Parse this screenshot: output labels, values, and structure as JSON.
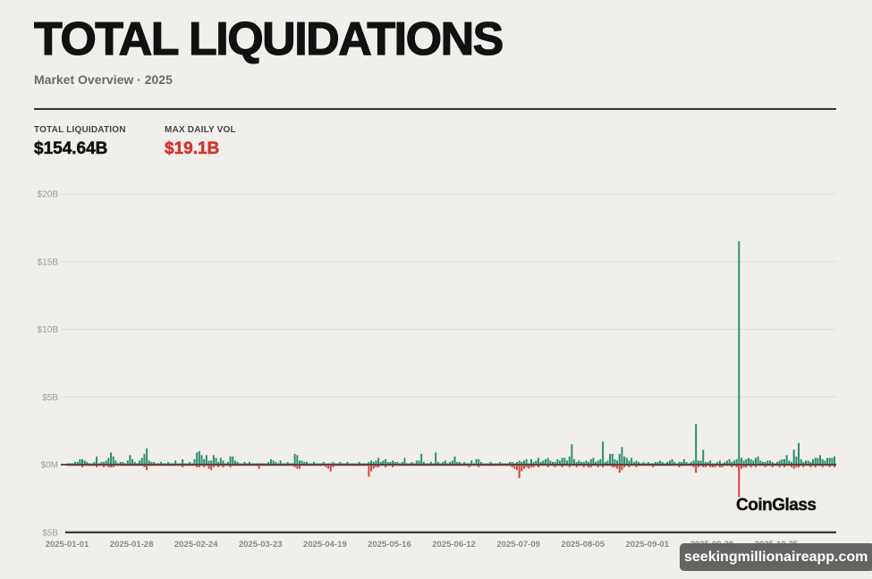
{
  "header": {
    "title": "TOTAL LIQUIDATIONS",
    "subtitle": "Market Overview · 2025"
  },
  "stats": [
    {
      "label": "TOTAL LIQUIDATION",
      "value": "$154.64B",
      "color": "#111111"
    },
    {
      "label": "MAX DAILY VOL",
      "value": "$19.1B",
      "color": "#d8322b"
    }
  ],
  "logo": "CoinGlass",
  "watermark": "seekingmillionaireapp.com",
  "chart_data": {
    "type": "bar",
    "title": "",
    "xlabel": "",
    "ylabel": "",
    "unit": "USD billions, daily",
    "ylim": [
      -5,
      20
    ],
    "grid": true,
    "y_ticks": [
      {
        "value": 20,
        "label": "$20B"
      },
      {
        "value": 15,
        "label": "$15B"
      },
      {
        "value": 10,
        "label": "$10B"
      },
      {
        "value": 5,
        "label": "$5B"
      },
      {
        "value": 0,
        "label": "$0M"
      },
      {
        "value": -5,
        "label": "$5B"
      }
    ],
    "x_ticks": [
      "2025-01-01",
      "2025-01-28",
      "2025-02-24",
      "2025-03-23",
      "2025-04-19",
      "2025-05-16",
      "2025-06-12",
      "2025-07-09",
      "2025-08-05",
      "2025-09-01",
      "2025-09-28",
      "2025-10-25"
    ],
    "colors": {
      "positive": "#2a8f6e",
      "negative": "#d9413f"
    },
    "series": [
      {
        "values": [
          0.1,
          0.1,
          0.1,
          0.2,
          0.2,
          0.4,
          0.4,
          0.3,
          0.2,
          0.1,
          0.1,
          0.2,
          0.6,
          0.1,
          0.2,
          0.2,
          0.3,
          0.5,
          0.9,
          0.6,
          0.3,
          0.1,
          0.2,
          0.2,
          0.1,
          0.3,
          0.7,
          0.4,
          0.2,
          0.1,
          0.3,
          0.5,
          0.8,
          1.2,
          0.3,
          0.2,
          0.2,
          0.1,
          0.1,
          0.2,
          0.1,
          0.1,
          0.2,
          0.1,
          0.1,
          0.3,
          0.1,
          0.1,
          0.4,
          0.1,
          0.1,
          0.2,
          0.1,
          0.4,
          0.9,
          1.0,
          0.7,
          0.4,
          0.7,
          0.3,
          0.3,
          0.7,
          0.5,
          0.2,
          0.5,
          0.3,
          0.1,
          0.2,
          0.6,
          0.6,
          0.3,
          0.2,
          0.1,
          0.1,
          0.2,
          0.1,
          0.2,
          0.1,
          0.1,
          0.1,
          0.1,
          0.1,
          0.1,
          0.1,
          0.2,
          0.4,
          0.3,
          0.2,
          0.1,
          0.3,
          0.1,
          0.1,
          0.2,
          0.1,
          0.1,
          0.8,
          0.7,
          0.3,
          0.3,
          0.2,
          0.2,
          0.1,
          0.1,
          0.2,
          0.1,
          0.1,
          0.1,
          0.2,
          0.1,
          0.1,
          0.1,
          0.2,
          0.1,
          0.1,
          0.2,
          0.1,
          0.1,
          0.2,
          0.1,
          0.1,
          0.1,
          0.1,
          0.2,
          0.1,
          0.1,
          0.1,
          0.2,
          0.3,
          0.2,
          0.3,
          0.5,
          0.2,
          0.3,
          0.4,
          0.2,
          0.2,
          0.3,
          0.2,
          0.2,
          0.1,
          0.2,
          0.5,
          0.1,
          0.1,
          0.2,
          0.1,
          0.3,
          0.3,
          0.8,
          0.2,
          0.1,
          0.1,
          0.2,
          0.1,
          0.9,
          0.2,
          0.1,
          0.2,
          0.3,
          0.1,
          0.2,
          0.3,
          0.6,
          0.2,
          0.2,
          0.1,
          0.2,
          0.1,
          0.1,
          0.3,
          0.1,
          0.4,
          0.4,
          0.2,
          0.1,
          0.1,
          0.1,
          0.2,
          0.1,
          0.1,
          0.1,
          0.2,
          0.1,
          0.1,
          0.1,
          0.2,
          0.2,
          0.1,
          0.2,
          0.3,
          0.2,
          0.3,
          0.4,
          0.1,
          0.4,
          0.2,
          0.3,
          0.5,
          0.2,
          0.3,
          0.4,
          0.5,
          0.3,
          0.2,
          0.2,
          0.4,
          0.3,
          0.5,
          0.5,
          0.3,
          0.6,
          1.5,
          0.4,
          0.2,
          0.3,
          0.2,
          0.2,
          0.3,
          0.2,
          0.4,
          0.5,
          0.2,
          0.3,
          0.4,
          1.7,
          0.2,
          0.3,
          0.8,
          0.8,
          0.4,
          0.3,
          0.8,
          1.3,
          0.6,
          0.5,
          0.3,
          0.5,
          0.2,
          0.3,
          0.2,
          0.1,
          0.2,
          0.1,
          0.2,
          0.1,
          0.1,
          0.2,
          0.2,
          0.3,
          0.2,
          0.1,
          0.2,
          0.3,
          0.4,
          0.2,
          0.1,
          0.2,
          0.2,
          0.4,
          0.2,
          0.1,
          0.2,
          0.3,
          3.0,
          0.3,
          0.3,
          1.1,
          0.2,
          0.2,
          0.3,
          0.1,
          0.1,
          0.2,
          0.3,
          0.1,
          0.2,
          0.3,
          0.4,
          0.2,
          0.3,
          0.4,
          16.5,
          0.5,
          0.3,
          0.4,
          0.5,
          0.4,
          0.3,
          0.5,
          0.6,
          0.3,
          0.2,
          0.2,
          0.3,
          0.3,
          0.2,
          0.1,
          0.2,
          0.3,
          0.4,
          0.4,
          0.7,
          0.3,
          0.2,
          1.1,
          0.6,
          1.6,
          0.4,
          0.2,
          0.3,
          0.3,
          0.2,
          0.4,
          0.5,
          0.5,
          0.7,
          0.4,
          0.3,
          0.5,
          0.5,
          0.5,
          0.6
        ]
      },
      {
        "values": [
          -0.1,
          -0.1,
          -0.1,
          -0.1,
          -0.1,
          -0.1,
          -0.2,
          -0.1,
          -0.1,
          -0.1,
          -0.1,
          -0.1,
          -0.2,
          -0.1,
          -0.1,
          -0.2,
          -0.1,
          -0.2,
          -0.2,
          -0.2,
          -0.1,
          -0.1,
          -0.1,
          -0.1,
          -0.1,
          -0.1,
          -0.1,
          -0.1,
          -0.1,
          -0.1,
          -0.1,
          -0.1,
          -0.2,
          -0.4,
          -0.1,
          -0.1,
          -0.1,
          -0.1,
          -0.1,
          -0.1,
          -0.1,
          -0.1,
          -0.1,
          -0.1,
          -0.1,
          -0.1,
          -0.1,
          -0.1,
          -0.2,
          -0.1,
          -0.1,
          -0.1,
          -0.1,
          -0.1,
          -0.2,
          -0.2,
          -0.1,
          -0.2,
          -0.1,
          -0.3,
          -0.4,
          -0.2,
          -0.1,
          -0.2,
          -0.1,
          -0.2,
          -0.1,
          -0.1,
          -0.2,
          -0.1,
          -0.1,
          -0.1,
          -0.1,
          -0.1,
          -0.1,
          -0.1,
          -0.1,
          -0.1,
          -0.1,
          -0.1,
          -0.3,
          -0.1,
          -0.1,
          -0.1,
          -0.1,
          -0.1,
          -0.1,
          -0.1,
          -0.1,
          -0.1,
          -0.1,
          -0.1,
          -0.1,
          -0.1,
          -0.1,
          -0.2,
          -0.3,
          -0.3,
          -0.1,
          -0.1,
          -0.1,
          -0.1,
          -0.1,
          -0.1,
          -0.1,
          -0.1,
          -0.1,
          -0.1,
          -0.2,
          -0.3,
          -0.5,
          -0.2,
          -0.1,
          -0.1,
          -0.1,
          -0.1,
          -0.1,
          -0.1,
          -0.1,
          -0.1,
          -0.1,
          -0.1,
          -0.1,
          -0.1,
          -0.1,
          -0.1,
          -0.9,
          -0.5,
          -0.3,
          -0.2,
          -0.2,
          -0.1,
          -0.1,
          -0.2,
          -0.1,
          -0.1,
          -0.2,
          -0.1,
          -0.1,
          -0.1,
          -0.1,
          -0.1,
          -0.1,
          -0.1,
          -0.1,
          -0.1,
          -0.1,
          -0.1,
          -0.1,
          -0.1,
          -0.1,
          -0.1,
          -0.1,
          -0.1,
          -0.1,
          -0.1,
          -0.1,
          -0.1,
          -0.1,
          -0.1,
          -0.1,
          -0.1,
          -0.1,
          -0.1,
          -0.1,
          -0.1,
          -0.1,
          -0.1,
          -0.2,
          -0.1,
          -0.1,
          -0.1,
          -0.2,
          -0.1,
          -0.1,
          -0.1,
          -0.1,
          -0.1,
          -0.1,
          -0.1,
          -0.1,
          -0.1,
          -0.1,
          -0.1,
          -0.1,
          -0.1,
          -0.2,
          -0.3,
          -0.4,
          -1.0,
          -0.5,
          -0.3,
          -0.2,
          -0.3,
          -0.2,
          -0.2,
          -0.1,
          -0.2,
          -0.1,
          -0.1,
          -0.1,
          -0.2,
          -0.1,
          -0.1,
          -0.2,
          -0.1,
          -0.1,
          -0.2,
          -0.1,
          -0.1,
          -0.2,
          -0.1,
          -0.1,
          -0.2,
          -0.1,
          -0.1,
          -0.2,
          -0.1,
          -0.2,
          -0.2,
          -0.1,
          -0.1,
          -0.2,
          -0.1,
          -0.2,
          -0.1,
          -0.1,
          -0.1,
          -0.2,
          -0.2,
          -0.3,
          -0.6,
          -0.4,
          -0.2,
          -0.1,
          -0.2,
          -0.1,
          -0.1,
          -0.2,
          -0.1,
          -0.1,
          -0.1,
          -0.1,
          -0.1,
          -0.1,
          -0.2,
          -0.1,
          -0.1,
          -0.1,
          -0.1,
          -0.1,
          -0.1,
          -0.1,
          -0.1,
          -0.1,
          -0.1,
          -0.2,
          -0.1,
          -0.1,
          -0.1,
          -0.1,
          -0.1,
          -0.2,
          -0.6,
          -0.2,
          -0.1,
          -0.2,
          -0.2,
          -0.1,
          -0.2,
          -0.2,
          -0.2,
          -0.1,
          -0.2,
          -0.2,
          -0.1,
          -0.1,
          -0.1,
          -0.2,
          -0.1,
          -0.2,
          -2.4,
          -0.3,
          -0.2,
          -0.2,
          -0.1,
          -0.2,
          -0.1,
          -0.2,
          -0.1,
          -0.1,
          -0.1,
          -0.2,
          -0.1,
          -0.1,
          -0.2,
          -0.1,
          -0.1,
          -0.2,
          -0.1,
          -0.2,
          -0.1,
          -0.1,
          -0.2,
          -0.3,
          -0.2,
          -0.2,
          -0.1,
          -0.2,
          -0.1,
          -0.1,
          -0.2,
          -0.1,
          -0.2,
          -0.1,
          -0.1,
          -0.2,
          -0.1,
          -0.1,
          -0.2,
          -0.1,
          -0.2
        ]
      }
    ]
  }
}
